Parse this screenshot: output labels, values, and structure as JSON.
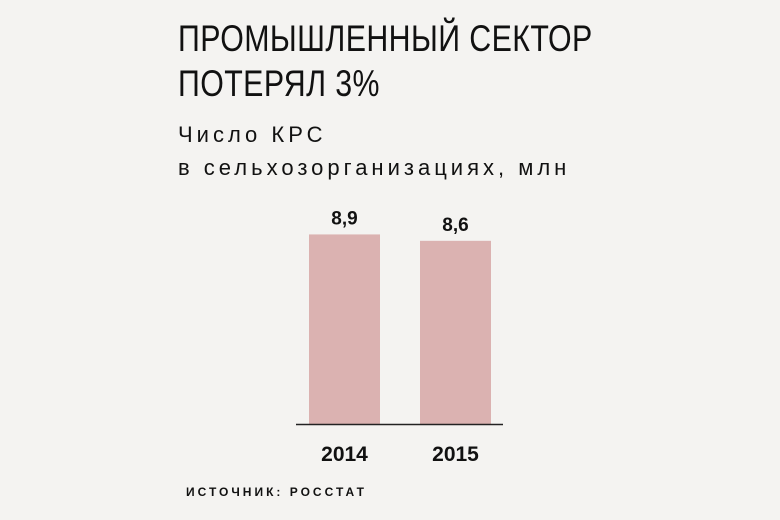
{
  "header": {
    "title_line1": "ПРОМЫШЛЕННЫЙ СЕКТОР",
    "title_line2": "ПОТЕРЯЛ 3%",
    "subtitle_line1": "Число КРС",
    "subtitle_line2": "в сельхозорганизациях, млн"
  },
  "footer": {
    "source": "ИСТОЧНИК: РОССТАТ"
  },
  "colors": {
    "bar": "#dbb2b1",
    "axis": "#222222",
    "background": "#f4f3f1"
  },
  "chart_data": {
    "type": "bar",
    "categories": [
      "2014",
      "2015"
    ],
    "values": [
      8.9,
      8.6
    ],
    "data_labels": [
      "8,9",
      "8,6"
    ],
    "title": "ПРОМЫШЛЕННЫЙ СЕКТОР ПОТЕРЯЛ 3%",
    "subtitle": "Число КРС в сельхозорганизациях, млн",
    "xlabel": "",
    "ylabel": "",
    "ylim": [
      0,
      10
    ],
    "grid": false,
    "legend": "none"
  }
}
